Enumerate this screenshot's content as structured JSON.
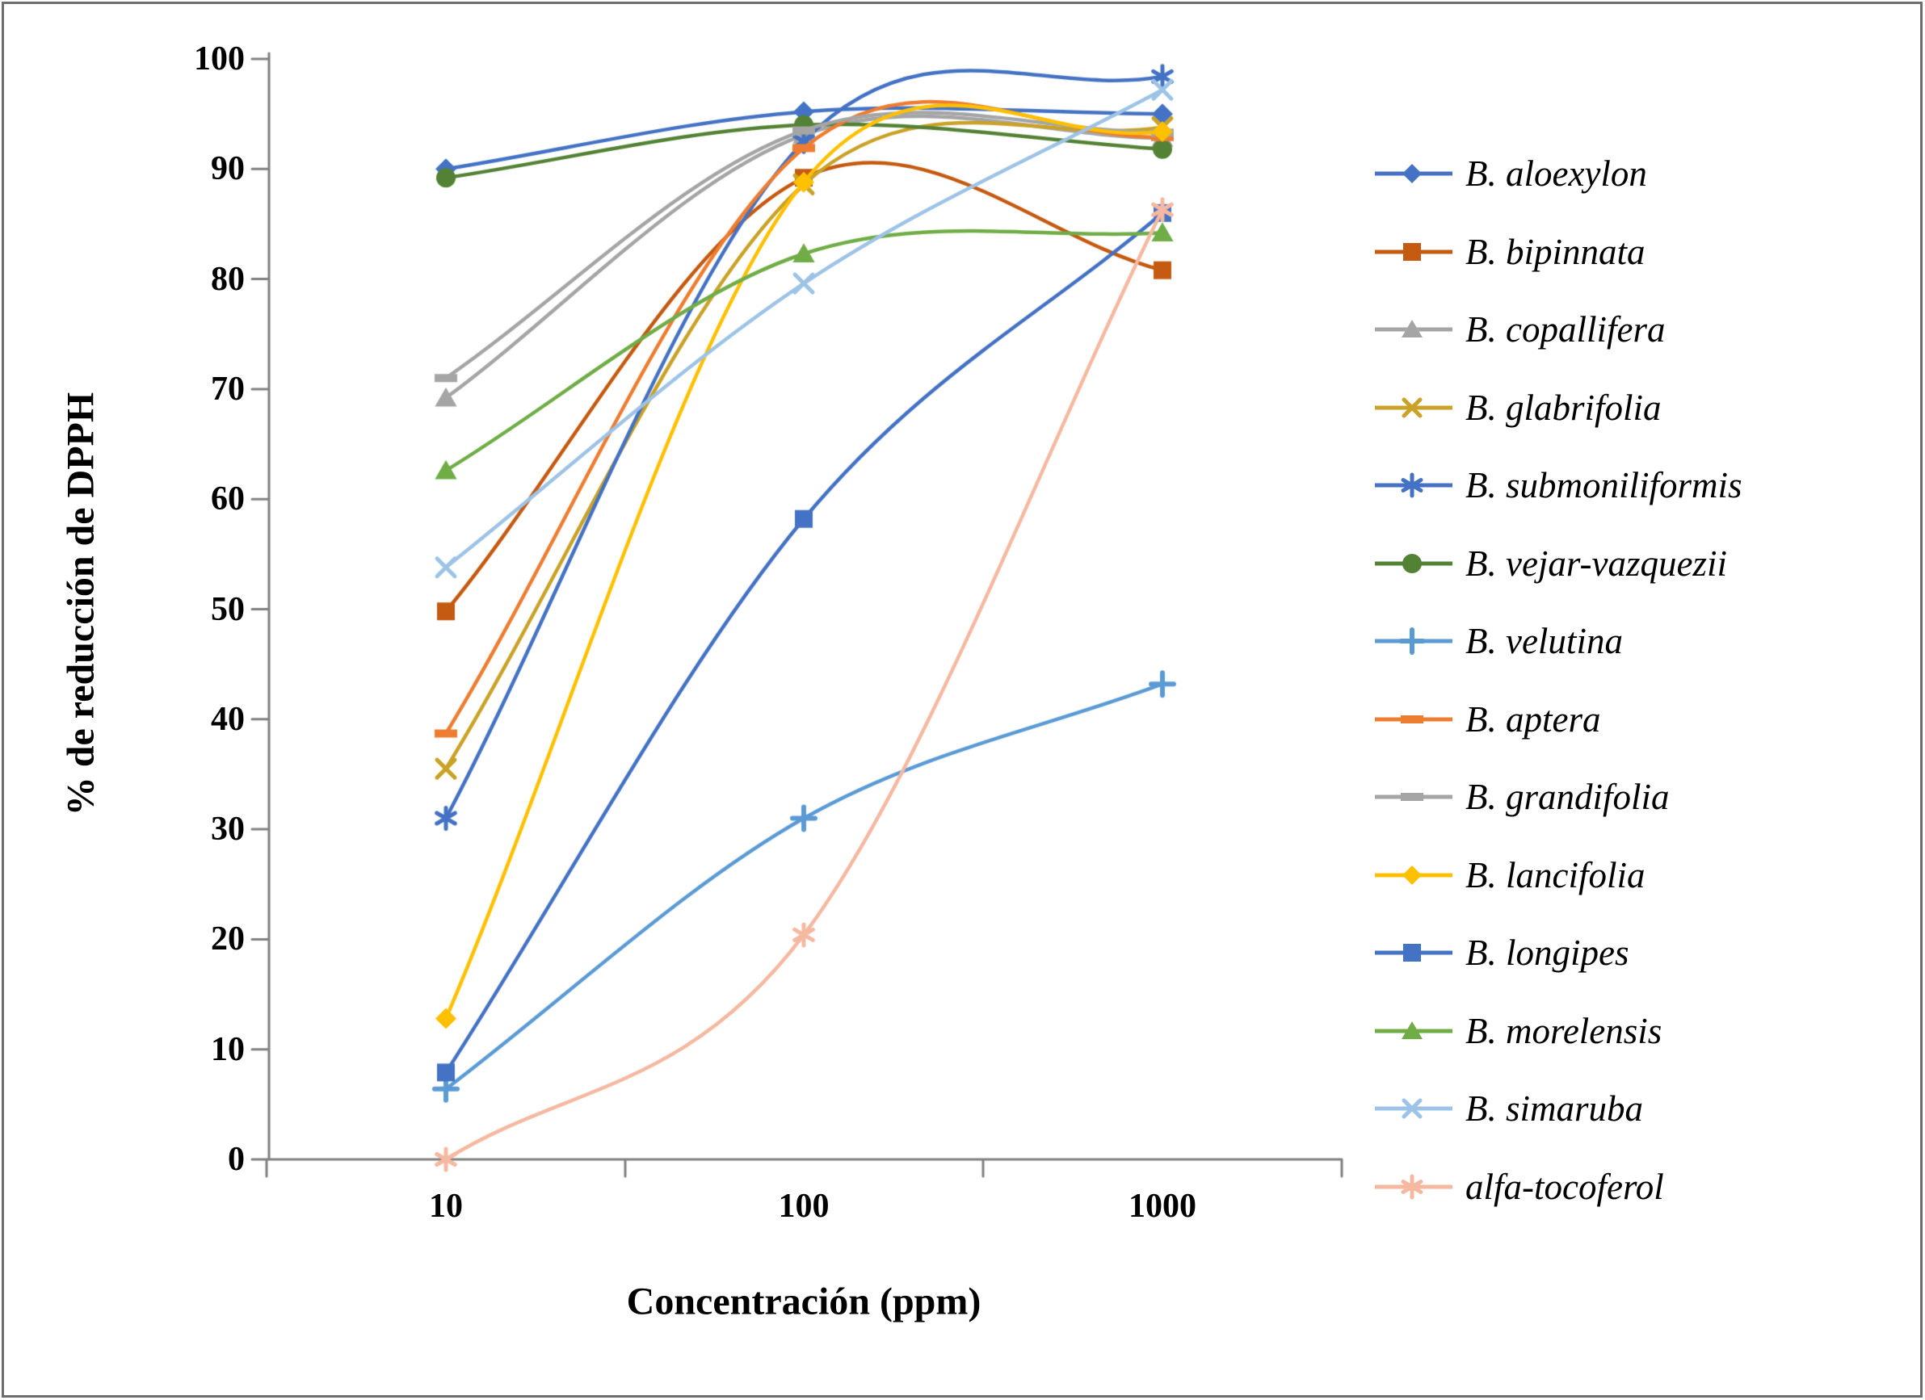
{
  "figure": {
    "background": "#ffffff",
    "border_color": "#6d6d6d"
  },
  "axes": {
    "y_title": "% de reducción de DPPH",
    "x_title": "Concentración (ppm)",
    "y_tick_labels": [
      "0",
      "10",
      "20",
      "30",
      "40",
      "50",
      "60",
      "70",
      "80",
      "90",
      "100"
    ],
    "x_tick_labels": [
      "10",
      "100",
      "1000"
    ],
    "axis_color": "#808080",
    "text_color": "#000000"
  },
  "chart_data": {
    "type": "line",
    "title": "",
    "xlabel": "Concentración (ppm)",
    "ylabel": "% de reducción de DPPH",
    "x": [
      10,
      100,
      1000
    ],
    "x_axis_style": "category (log-spaced concentrations)",
    "ylim": [
      0,
      100
    ],
    "y_tick_step": 10,
    "grid": false,
    "smooth_lines": true,
    "legend_position": "right",
    "series": [
      {
        "name": "B. aloexylon",
        "color": "#4472C4",
        "marker": "diamond",
        "values": [
          90.0,
          95.2,
          95.0
        ]
      },
      {
        "name": "B. bipinnata",
        "color": "#C55A11",
        "marker": "square",
        "values": [
          49.8,
          89.2,
          80.8
        ]
      },
      {
        "name": "B. copallifera",
        "color": "#A5A5A5",
        "marker": "triangle",
        "values": [
          69.2,
          93.1,
          92.8
        ]
      },
      {
        "name": "B. glabrifolia",
        "color": "#C9A227",
        "marker": "x",
        "values": [
          35.5,
          88.6,
          93.8
        ]
      },
      {
        "name": "B. submoniliformis",
        "color": "#4472C4",
        "marker": "asterisk",
        "values": [
          31.0,
          92.5,
          98.4
        ]
      },
      {
        "name": "B. vejar-vazquezii",
        "color": "#548235",
        "marker": "circle",
        "values": [
          89.2,
          94.0,
          91.8
        ]
      },
      {
        "name": "B. velutina",
        "color": "#5B9BD5",
        "marker": "plus",
        "values": [
          6.4,
          31.0,
          43.2
        ]
      },
      {
        "name": "B. aptera",
        "color": "#ED7D31",
        "marker": "dash",
        "values": [
          38.7,
          91.9,
          92.9
        ]
      },
      {
        "name": "B. grandifolia",
        "color": "#A5A5A5",
        "marker": "dash",
        "values": [
          71.0,
          93.5,
          93.3
        ]
      },
      {
        "name": "B. lancifolia",
        "color": "#FFC000",
        "marker": "diamond",
        "values": [
          12.8,
          88.8,
          93.4
        ]
      },
      {
        "name": "B. longipes",
        "color": "#4472C4",
        "marker": "square",
        "values": [
          7.9,
          58.2,
          86.0
        ]
      },
      {
        "name": "B. morelensis",
        "color": "#70AD47",
        "marker": "triangle",
        "values": [
          62.6,
          82.3,
          84.2
        ]
      },
      {
        "name": "B. simaruba",
        "color": "#9DC3E6",
        "marker": "x",
        "values": [
          53.8,
          79.6,
          97.2
        ]
      },
      {
        "name": "alfa-tocoferol",
        "color": "#F5B8A0",
        "marker": "asterisk",
        "values": [
          0.0,
          20.4,
          86.3
        ]
      }
    ]
  }
}
